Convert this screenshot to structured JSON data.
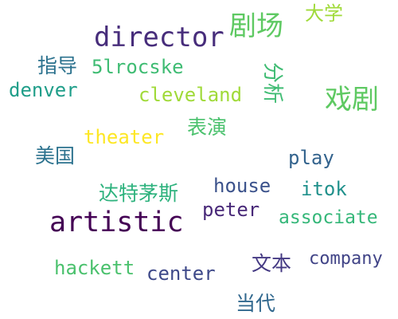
{
  "word_cloud": {
    "words": [
      {
        "text": "director",
        "color": "#472d7b"
      },
      {
        "text": "剧场",
        "color": "#5ec962"
      },
      {
        "text": "大学",
        "color": "#a0da39"
      },
      {
        "text": "指导",
        "color": "#2c728e"
      },
      {
        "text": "5lrocske",
        "color": "#3fbc73"
      },
      {
        "text": "denver",
        "color": "#1f9e89"
      },
      {
        "text": "cleveland",
        "color": "#a0da39"
      },
      {
        "text": "分析",
        "color": "#3fbc73"
      },
      {
        "text": "戏剧",
        "color": "#5ec962"
      },
      {
        "text": "表演",
        "color": "#4ac16d"
      },
      {
        "text": "theater",
        "color": "#fde725"
      },
      {
        "text": "美国",
        "color": "#2c728e"
      },
      {
        "text": "play",
        "color": "#33638d"
      },
      {
        "text": "达特茅斯",
        "color": "#2db27d"
      },
      {
        "text": "house",
        "color": "#3b528b"
      },
      {
        "text": "itok",
        "color": "#21918c"
      },
      {
        "text": "artistic",
        "color": "#440154"
      },
      {
        "text": "peter",
        "color": "#482878"
      },
      {
        "text": "associate",
        "color": "#35b779"
      },
      {
        "text": "hackett",
        "color": "#4ac16d"
      },
      {
        "text": "center",
        "color": "#3e4989"
      },
      {
        "text": "文本",
        "color": "#443983"
      },
      {
        "text": "company",
        "color": "#414487"
      },
      {
        "text": "当代",
        "color": "#31688e"
      }
    ]
  }
}
